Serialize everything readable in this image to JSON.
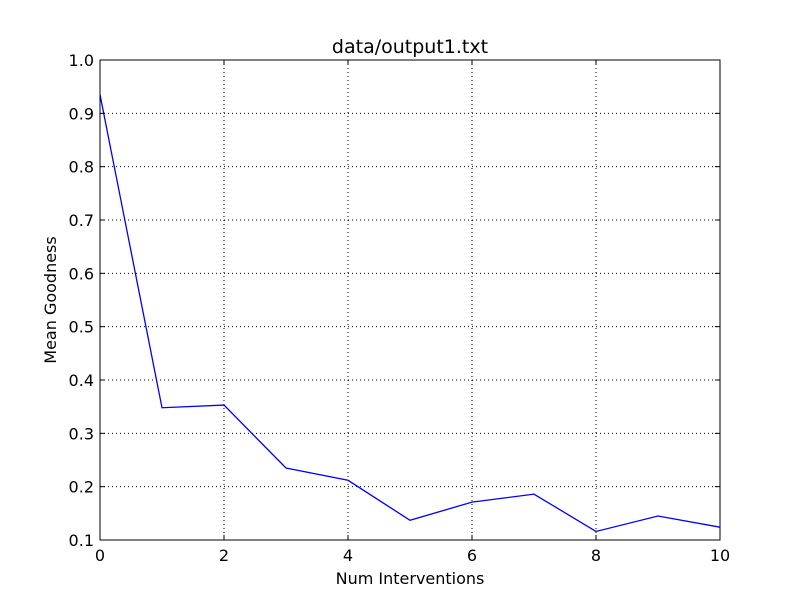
{
  "chart_data": {
    "type": "line",
    "title": "data/output1.txt",
    "xlabel": "Num Interventions",
    "ylabel": "Mean Goodness",
    "xlim": [
      0,
      10
    ],
    "ylim": [
      0.1,
      1.0
    ],
    "grid": true,
    "line_color": "#0000ff",
    "x_ticks": [
      "0",
      "2",
      "4",
      "6",
      "8",
      "10"
    ],
    "y_ticks": [
      "0.1",
      "0.2",
      "0.3",
      "0.4",
      "0.5",
      "0.6",
      "0.7",
      "0.8",
      "0.9",
      "1.0"
    ],
    "series": [
      {
        "x": [
          0,
          1,
          2,
          3,
          4,
          5,
          6,
          7,
          8,
          9,
          10
        ],
        "values": [
          0.935,
          0.348,
          0.353,
          0.235,
          0.212,
          0.137,
          0.171,
          0.186,
          0.116,
          0.145,
          0.124
        ]
      }
    ]
  }
}
